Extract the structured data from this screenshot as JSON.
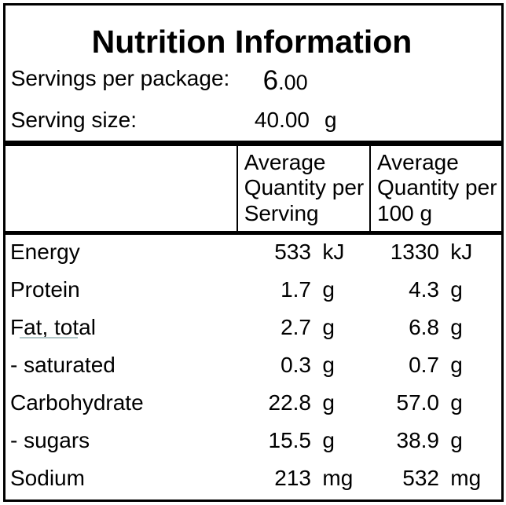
{
  "panel": {
    "title": "Nutrition Information",
    "servings_per_package": {
      "label": "Servings per package:",
      "value_int": "6",
      "value_frac": ".00"
    },
    "serving_size": {
      "label": "Serving size:",
      "value": "40.00",
      "unit": "g"
    }
  },
  "table": {
    "header": {
      "per_serving": "Average\nQuantity per\nServing",
      "per_100g": "Average\nQuantity per\n100 g"
    },
    "rows": [
      {
        "name": "Energy",
        "per_serving": "533",
        "unit_serving": "kJ",
        "per_100g": "1330",
        "unit_100g": "kJ"
      },
      {
        "name": "Protein",
        "per_serving": "1.7",
        "unit_serving": "g",
        "per_100g": "4.3",
        "unit_100g": "g"
      },
      {
        "name": "Fat, total",
        "per_serving": "2.7",
        "unit_serving": "g",
        "per_100g": "6.8",
        "unit_100g": "g"
      },
      {
        "name": "- saturated",
        "per_serving": "0.3",
        "unit_serving": "g",
        "per_100g": "0.7",
        "unit_100g": "g"
      },
      {
        "name": "Carbohydrate",
        "per_serving": "22.8",
        "unit_serving": "g",
        "per_100g": "57.0",
        "unit_100g": "g"
      },
      {
        "name": "- sugars",
        "per_serving": "15.5",
        "unit_serving": "g",
        "per_100g": "38.9",
        "unit_100g": "g"
      },
      {
        "name": "Sodium",
        "per_serving": "213",
        "unit_serving": "mg",
        "per_100g": "532",
        "unit_100g": "mg"
      }
    ]
  },
  "colors": {
    "border": "#000000",
    "text": "#000000",
    "fat_underline": "#b2c7c9"
  }
}
